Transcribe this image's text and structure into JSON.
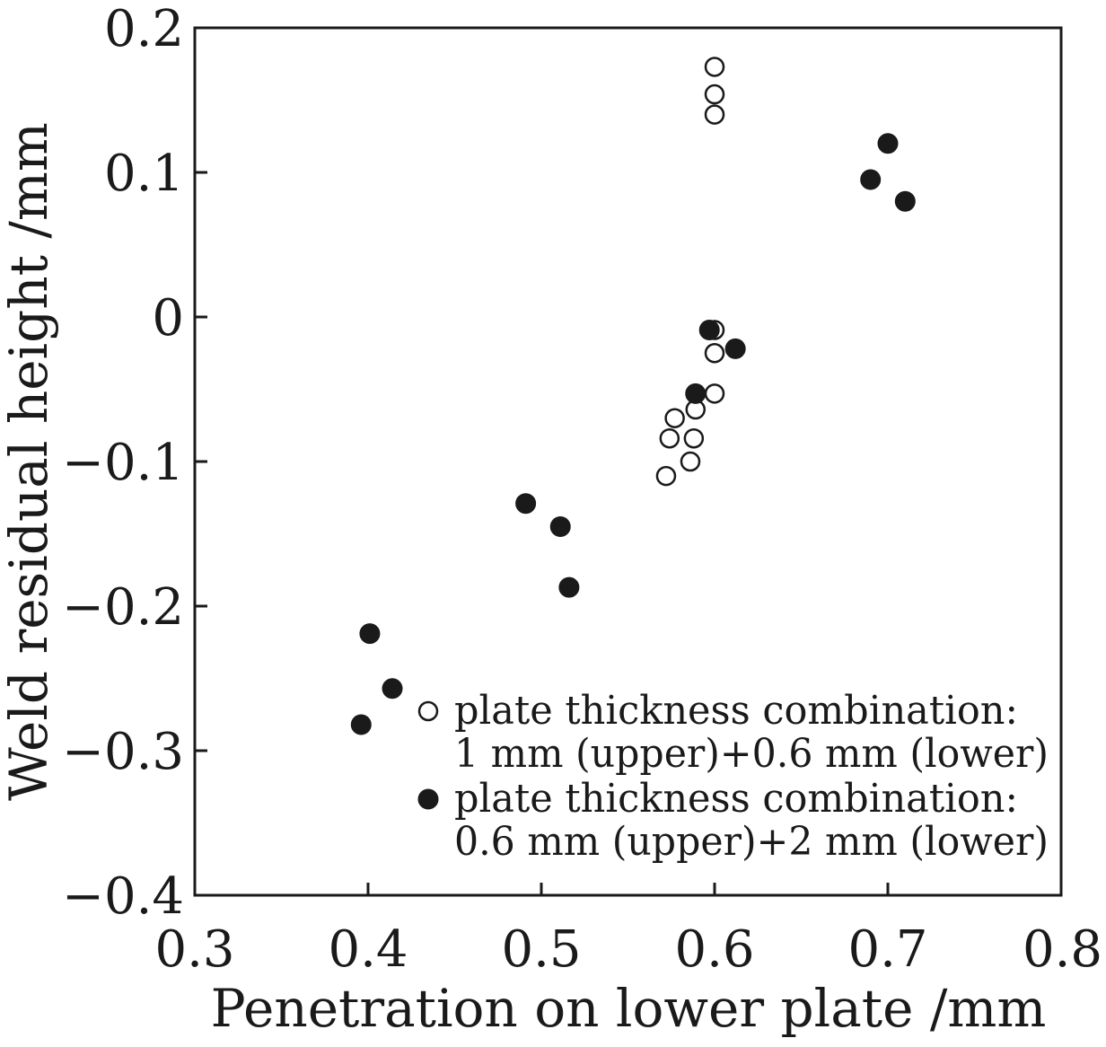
{
  "chart_data": {
    "type": "scatter",
    "title": "",
    "xlabel": "Penetration on lower plate /mm",
    "ylabel": "Weld residual height /mm",
    "xlim": [
      0.3,
      0.8
    ],
    "ylim": [
      -0.4,
      0.2
    ],
    "x_ticks": [
      0.3,
      0.4,
      0.5,
      0.6,
      0.7,
      0.8
    ],
    "y_ticks": [
      0.2,
      0.1,
      0,
      -0.1,
      -0.2,
      -0.3,
      -0.4
    ],
    "x_tick_labels": [
      "0.3",
      "0.4",
      "0.5",
      "0.6",
      "0.7",
      "0.8"
    ],
    "y_tick_labels": [
      "0.2",
      "0.1",
      "0",
      "−0.1",
      "−0.2",
      "−0.3",
      "−0.4"
    ],
    "grid": false,
    "legend_position": "bottom-right",
    "series": [
      {
        "name": "plate thickness combination: 1 mm (upper)+0.6 mm (lower)",
        "legend_lines": [
          "plate thickness combination:",
          "1 mm (upper)+0.6 mm (lower)"
        ],
        "marker": "open-circle",
        "color": "#1a1a1a",
        "points": [
          {
            "x": 0.6,
            "y": 0.173
          },
          {
            "x": 0.6,
            "y": 0.154
          },
          {
            "x": 0.6,
            "y": 0.14
          },
          {
            "x": 0.6,
            "y": -0.009
          },
          {
            "x": 0.6,
            "y": -0.025
          },
          {
            "x": 0.6,
            "y": -0.053
          },
          {
            "x": 0.589,
            "y": -0.064
          },
          {
            "x": 0.577,
            "y": -0.07
          },
          {
            "x": 0.574,
            "y": -0.084
          },
          {
            "x": 0.588,
            "y": -0.084
          },
          {
            "x": 0.586,
            "y": -0.1
          },
          {
            "x": 0.572,
            "y": -0.11
          }
        ]
      },
      {
        "name": "plate thickness combination: 0.6 mm (upper)+2 mm (lower)",
        "legend_lines": [
          "plate thickness combination:",
          "0.6 mm (upper)+2 mm (lower)"
        ],
        "marker": "filled-circle",
        "color": "#1a1a1a",
        "points": [
          {
            "x": 0.7,
            "y": 0.12
          },
          {
            "x": 0.69,
            "y": 0.095
          },
          {
            "x": 0.71,
            "y": 0.08
          },
          {
            "x": 0.597,
            "y": -0.009
          },
          {
            "x": 0.612,
            "y": -0.022
          },
          {
            "x": 0.589,
            "y": -0.053
          },
          {
            "x": 0.491,
            "y": -0.129
          },
          {
            "x": 0.511,
            "y": -0.145
          },
          {
            "x": 0.516,
            "y": -0.187
          },
          {
            "x": 0.401,
            "y": -0.219
          },
          {
            "x": 0.414,
            "y": -0.257
          },
          {
            "x": 0.396,
            "y": -0.282
          }
        ]
      }
    ]
  }
}
